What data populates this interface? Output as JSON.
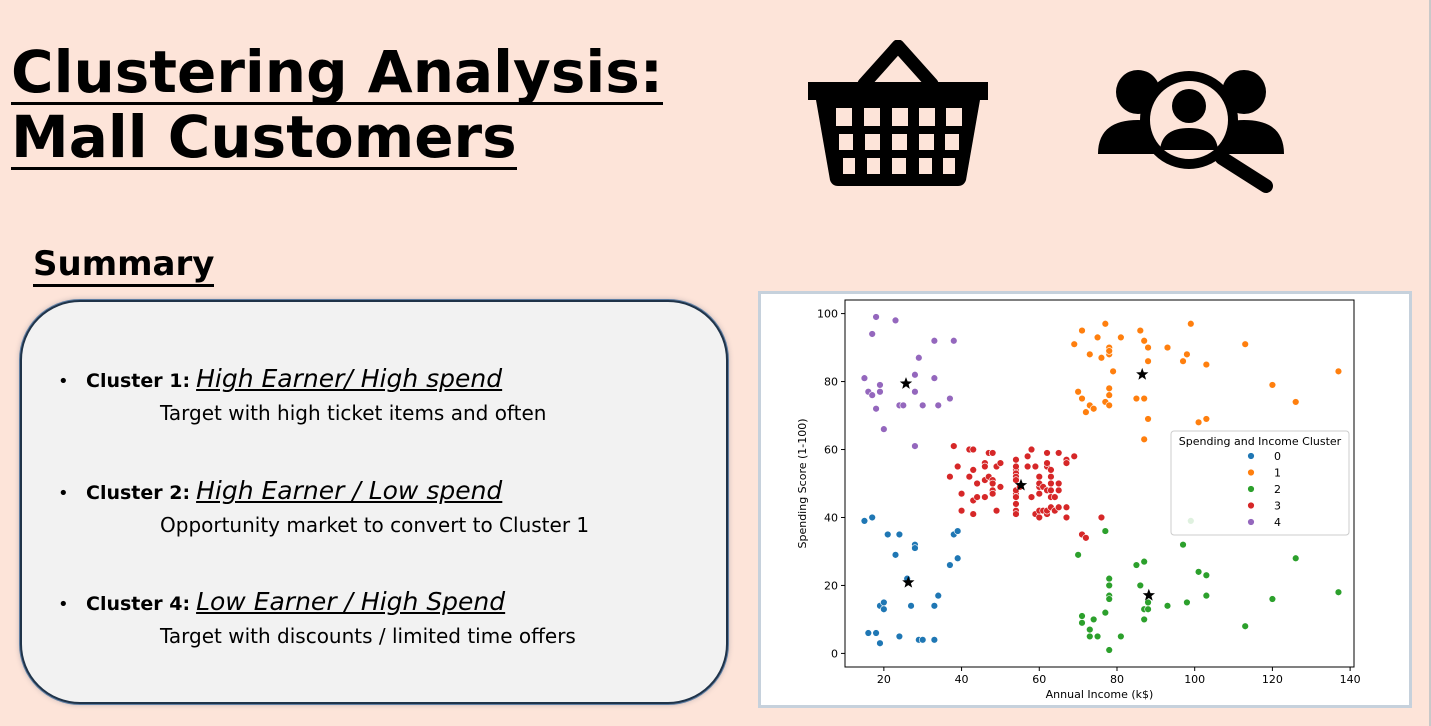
{
  "title": {
    "line1": "Clustering Analysis:",
    "line2": "Mall Customers"
  },
  "icons": [
    "shopping-basket-icon",
    "user-search-icon"
  ],
  "summary": {
    "heading": "Summary",
    "bullet": "•",
    "clusters": [
      {
        "name": "Cluster 1",
        "desc": "High Earner/ High spend",
        "sub": "Target with high ticket items and often"
      },
      {
        "name": "Cluster 2",
        "desc": "High Earner / Low spend",
        "sub": "Opportunity market to convert to Cluster 1"
      },
      {
        "name": "Cluster 4",
        "desc": "Low Earner / High Spend",
        "sub": "Target with discounts / limited time offers"
      }
    ]
  },
  "chart_data": {
    "type": "scatter",
    "xlabel": "Annual Income (k$)",
    "ylabel": "Spending Score (1-100)",
    "xlim": [
      10,
      141
    ],
    "ylim": [
      -4,
      104
    ],
    "xticks": [
      20,
      40,
      60,
      80,
      100,
      120,
      140
    ],
    "yticks": [
      0,
      20,
      40,
      60,
      80,
      100
    ],
    "grid": false,
    "legend": {
      "title": "Spending and Income Cluster",
      "placement": "right",
      "labels": [
        "0",
        "1",
        "2",
        "3",
        "4"
      ]
    },
    "colors": [
      "#1f77b4",
      "#ff7f0e",
      "#2ca02c",
      "#d62728",
      "#9467bd"
    ],
    "series": [
      {
        "name": "0",
        "points": [
          [
            15,
            39
          ],
          [
            16,
            6
          ],
          [
            17,
            40
          ],
          [
            18,
            6
          ],
          [
            19,
            3
          ],
          [
            19,
            14
          ],
          [
            20,
            15
          ],
          [
            20,
            13
          ],
          [
            21,
            35
          ],
          [
            23,
            29
          ],
          [
            24,
            35
          ],
          [
            24,
            5
          ],
          [
            27,
            14
          ],
          [
            28,
            32
          ],
          [
            28,
            31
          ],
          [
            29,
            4
          ],
          [
            30,
            4
          ],
          [
            33,
            14
          ],
          [
            33,
            4
          ],
          [
            34,
            17
          ],
          [
            37,
            26
          ],
          [
            38,
            35
          ],
          [
            39,
            36
          ],
          [
            39,
            28
          ],
          [
            26,
            22
          ]
        ]
      },
      {
        "name": "1",
        "points": [
          [
            69,
            91
          ],
          [
            70,
            77
          ],
          [
            71,
            95
          ],
          [
            71,
            75
          ],
          [
            72,
            71
          ],
          [
            73,
            88
          ],
          [
            73,
            73
          ],
          [
            74,
            72
          ],
          [
            75,
            93
          ],
          [
            76,
            87
          ],
          [
            77,
            97
          ],
          [
            77,
            74
          ],
          [
            78,
            90
          ],
          [
            78,
            88
          ],
          [
            78,
            76
          ],
          [
            78,
            89
          ],
          [
            78,
            78
          ],
          [
            78,
            73
          ],
          [
            79,
            83
          ],
          [
            81,
            93
          ],
          [
            85,
            75
          ],
          [
            86,
            95
          ],
          [
            87,
            63
          ],
          [
            87,
            75
          ],
          [
            87,
            92
          ],
          [
            88,
            86
          ],
          [
            88,
            69
          ],
          [
            88,
            90
          ],
          [
            93,
            90
          ],
          [
            97,
            86
          ],
          [
            98,
            88
          ],
          [
            99,
            97
          ],
          [
            101,
            68
          ],
          [
            103,
            85
          ],
          [
            103,
            69
          ],
          [
            113,
            91
          ],
          [
            120,
            79
          ],
          [
            126,
            74
          ],
          [
            137,
            83
          ]
        ]
      },
      {
        "name": "2",
        "points": [
          [
            70,
            29
          ],
          [
            71,
            11
          ],
          [
            71,
            9
          ],
          [
            72,
            34
          ],
          [
            73,
            5
          ],
          [
            73,
            7
          ],
          [
            74,
            10
          ],
          [
            75,
            5
          ],
          [
            77,
            12
          ],
          [
            77,
            36
          ],
          [
            78,
            22
          ],
          [
            78,
            17
          ],
          [
            78,
            20
          ],
          [
            78,
            16
          ],
          [
            78,
            1
          ],
          [
            81,
            5
          ],
          [
            85,
            26
          ],
          [
            86,
            20
          ],
          [
            87,
            27
          ],
          [
            87,
            13
          ],
          [
            87,
            10
          ],
          [
            88,
            13
          ],
          [
            88,
            15
          ],
          [
            93,
            14
          ],
          [
            97,
            32
          ],
          [
            98,
            15
          ],
          [
            99,
            39
          ],
          [
            101,
            24
          ],
          [
            103,
            17
          ],
          [
            103,
            23
          ],
          [
            113,
            8
          ],
          [
            120,
            16
          ],
          [
            126,
            28
          ],
          [
            137,
            18
          ]
        ]
      },
      {
        "name": "3",
        "points": [
          [
            38,
            61
          ],
          [
            39,
            55
          ],
          [
            40,
            47
          ],
          [
            40,
            42
          ],
          [
            40,
            42
          ],
          [
            42,
            52
          ],
          [
            42,
            60
          ],
          [
            43,
            54
          ],
          [
            43,
            60
          ],
          [
            43,
            45
          ],
          [
            43,
            41
          ],
          [
            44,
            50
          ],
          [
            44,
            46
          ],
          [
            46,
            51
          ],
          [
            46,
            46
          ],
          [
            46,
            56
          ],
          [
            46,
            55
          ],
          [
            47,
            52
          ],
          [
            47,
            59
          ],
          [
            48,
            51
          ],
          [
            48,
            59
          ],
          [
            48,
            50
          ],
          [
            48,
            48
          ],
          [
            48,
            59
          ],
          [
            48,
            47
          ],
          [
            49,
            55
          ],
          [
            49,
            42
          ],
          [
            50,
            49
          ],
          [
            50,
            56
          ],
          [
            54,
            47
          ],
          [
            54,
            54
          ],
          [
            54,
            53
          ],
          [
            54,
            48
          ],
          [
            54,
            52
          ],
          [
            54,
            42
          ],
          [
            54,
            51
          ],
          [
            54,
            55
          ],
          [
            54,
            41
          ],
          [
            54,
            44
          ],
          [
            54,
            57
          ],
          [
            54,
            46
          ],
          [
            57,
            58
          ],
          [
            57,
            55
          ],
          [
            58,
            60
          ],
          [
            58,
            46
          ],
          [
            59,
            55
          ],
          [
            59,
            41
          ],
          [
            60,
            49
          ],
          [
            60,
            40
          ],
          [
            60,
            42
          ],
          [
            60,
            52
          ],
          [
            60,
            47
          ],
          [
            60,
            50
          ],
          [
            61,
            42
          ],
          [
            61,
            49
          ],
          [
            62,
            41
          ],
          [
            62,
            48
          ],
          [
            62,
            59
          ],
          [
            62,
            55
          ],
          [
            62,
            56
          ],
          [
            62,
            42
          ],
          [
            63,
            50
          ],
          [
            63,
            46
          ],
          [
            63,
            43
          ],
          [
            63,
            48
          ],
          [
            63,
            52
          ],
          [
            63,
            54
          ],
          [
            64,
            42
          ],
          [
            64,
            46
          ],
          [
            65,
            48
          ],
          [
            65,
            50
          ],
          [
            65,
            43
          ],
          [
            65,
            59
          ],
          [
            67,
            43
          ],
          [
            67,
            57
          ],
          [
            67,
            56
          ],
          [
            67,
            40
          ],
          [
            69,
            58
          ],
          [
            71,
            35
          ],
          [
            72,
            34
          ],
          [
            76,
            40
          ],
          [
            37,
            52
          ],
          [
            55,
            49
          ]
        ]
      },
      {
        "name": "4",
        "points": [
          [
            15,
            81
          ],
          [
            16,
            77
          ],
          [
            17,
            76
          ],
          [
            17,
            94
          ],
          [
            18,
            72
          ],
          [
            18,
            99
          ],
          [
            19,
            77
          ],
          [
            19,
            79
          ],
          [
            20,
            66
          ],
          [
            23,
            98
          ],
          [
            24,
            73
          ],
          [
            25,
            73
          ],
          [
            28,
            82
          ],
          [
            28,
            61
          ],
          [
            29,
            87
          ],
          [
            30,
            73
          ],
          [
            33,
            92
          ],
          [
            33,
            81
          ],
          [
            34,
            73
          ],
          [
            37,
            75
          ],
          [
            38,
            92
          ],
          [
            28,
            77
          ]
        ]
      }
    ],
    "centroids": [
      [
        25.7,
        79.4
      ],
      [
        86.5,
        82.1
      ],
      [
        88.2,
        17.1
      ],
      [
        55.3,
        49.5
      ],
      [
        26.3,
        20.9
      ]
    ]
  }
}
